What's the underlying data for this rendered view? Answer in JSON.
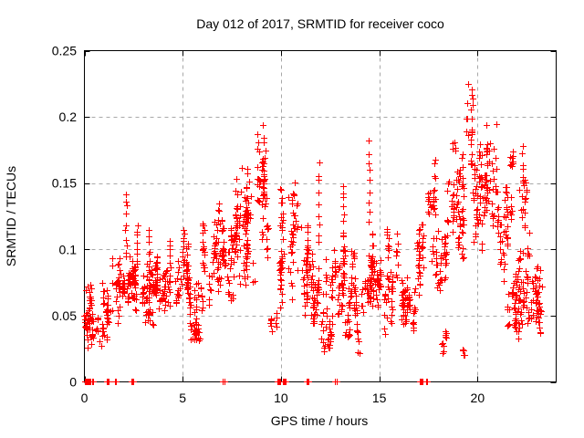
{
  "chart_data": {
    "type": "scatter",
    "title": "Day 012 of 2017, SRMTID for receiver coco",
    "xlabel": "GPS time / hours",
    "ylabel": "SRMTID / TECUs",
    "xlim": [
      0,
      24
    ],
    "ylim": [
      0,
      0.25
    ],
    "xticks": [
      0,
      5,
      10,
      15,
      20
    ],
    "xtick_labels": [
      "0",
      "5",
      "10",
      "15",
      "20"
    ],
    "yticks": [
      0,
      0.05,
      0.1,
      0.15,
      0.2,
      0.25
    ],
    "ytick_labels": [
      "0",
      "0.05",
      "0.1",
      "0.15",
      "0.2",
      "0.25"
    ],
    "grid": true,
    "grid_style": "dashed",
    "legend": null,
    "marker": {
      "shape": "plus",
      "size": 7,
      "color": "#ff0000"
    },
    "colors": {
      "marker": "#ff0000",
      "grid": "#a8a8a8",
      "frame": "#000000",
      "text": "#000000",
      "background": "#ffffff"
    },
    "series": [
      {
        "name": "SRMTID for receiver coco",
        "representation": "cluster-envelopes-of-dense-plus-scatter"
      }
    ],
    "clusters": [
      [
        0.05,
        0.55,
        0.022,
        0.078,
        55
      ],
      [
        0.6,
        0.95,
        0.025,
        0.055,
        9
      ],
      [
        0.9,
        1.15,
        0.03,
        0.09,
        14
      ],
      [
        1.15,
        1.55,
        0.025,
        0.095,
        24
      ],
      [
        1.55,
        1.9,
        0.04,
        0.1,
        26
      ],
      [
        1.9,
        2.3,
        0.05,
        0.1,
        26
      ],
      [
        2.3,
        2.85,
        0.045,
        0.095,
        42
      ],
      [
        2.85,
        3.6,
        0.04,
        0.09,
        55
      ],
      [
        3.6,
        4.6,
        0.045,
        0.095,
        62
      ],
      [
        4.6,
        5.35,
        0.045,
        0.105,
        52
      ],
      [
        5.35,
        6.0,
        0.028,
        0.09,
        50
      ],
      [
        6.0,
        6.55,
        0.05,
        0.122,
        36
      ],
      [
        6.55,
        7.05,
        0.055,
        0.138,
        40
      ],
      [
        7.05,
        7.6,
        0.05,
        0.122,
        42
      ],
      [
        7.6,
        8.15,
        0.06,
        0.172,
        46
      ],
      [
        8.15,
        8.7,
        0.07,
        0.162,
        55
      ],
      [
        8.7,
        9.35,
        0.08,
        0.203,
        62
      ],
      [
        9.4,
        9.95,
        0.03,
        0.062,
        11
      ],
      [
        10.0,
        10.45,
        0.05,
        0.148,
        40
      ],
      [
        10.45,
        10.95,
        0.055,
        0.152,
        36
      ],
      [
        10.95,
        11.45,
        0.038,
        0.12,
        40
      ],
      [
        11.45,
        12.0,
        0.03,
        0.1,
        44
      ],
      [
        12.0,
        12.65,
        0.02,
        0.1,
        46
      ],
      [
        12.65,
        13.3,
        0.05,
        0.112,
        50
      ],
      [
        13.3,
        14.05,
        0.02,
        0.1,
        56
      ],
      [
        14.05,
        14.6,
        0.045,
        0.1,
        40
      ],
      [
        14.6,
        15.3,
        0.05,
        0.115,
        46
      ],
      [
        15.3,
        15.95,
        0.03,
        0.12,
        46
      ],
      [
        15.95,
        16.45,
        0.04,
        0.1,
        34
      ],
      [
        16.45,
        16.95,
        0.025,
        0.08,
        24
      ],
      [
        16.95,
        17.5,
        0.05,
        0.12,
        34
      ],
      [
        17.5,
        17.95,
        0.09,
        0.176,
        30
      ],
      [
        17.95,
        18.45,
        0.055,
        0.135,
        40
      ],
      [
        18.5,
        18.85,
        0.11,
        0.188,
        22
      ],
      [
        18.85,
        19.45,
        0.09,
        0.185,
        46
      ],
      [
        19.5,
        19.8,
        0.13,
        0.225,
        24
      ],
      [
        17.9,
        20.0,
        0.018,
        0.048,
        16
      ],
      [
        19.8,
        20.45,
        0.08,
        0.19,
        56
      ],
      [
        20.45,
        21.05,
        0.09,
        0.21,
        50
      ],
      [
        21.05,
        21.55,
        0.07,
        0.16,
        40
      ],
      [
        21.55,
        21.85,
        0.12,
        0.198,
        16
      ],
      [
        21.55,
        22.1,
        0.03,
        0.1,
        40
      ],
      [
        22.1,
        22.6,
        0.08,
        0.186,
        24
      ],
      [
        22.05,
        22.75,
        0.025,
        0.105,
        48
      ],
      [
        22.75,
        23.3,
        0.028,
        0.095,
        50
      ]
    ],
    "spikes": [
      [
        2.15,
        0.09,
        0.145,
        10
      ],
      [
        2.7,
        0.085,
        0.122,
        8
      ],
      [
        3.3,
        0.075,
        0.116,
        9
      ],
      [
        4.38,
        0.075,
        0.11,
        8
      ],
      [
        5.05,
        0.09,
        0.118,
        8
      ],
      [
        11.95,
        0.1,
        0.17,
        9
      ],
      [
        13.2,
        0.1,
        0.152,
        9
      ],
      [
        14.5,
        0.12,
        0.185,
        9
      ],
      [
        22.3,
        0.12,
        0.186,
        8
      ]
    ],
    "zero_markers": [
      [
        0.17,
        0.3,
        10
      ],
      [
        0.46,
        0.05,
        2
      ],
      [
        1.2,
        0.12,
        6
      ],
      [
        1.6,
        0.05,
        2
      ],
      [
        2.47,
        0.12,
        6
      ],
      [
        7.1,
        0.05,
        2
      ],
      [
        9.9,
        0.14,
        7
      ],
      [
        10.2,
        0.14,
        7
      ],
      [
        11.37,
        0.12,
        6
      ],
      [
        12.8,
        0.06,
        2
      ],
      [
        17.15,
        0.12,
        6
      ],
      [
        17.43,
        0.06,
        2
      ]
    ],
    "seed": 42
  }
}
